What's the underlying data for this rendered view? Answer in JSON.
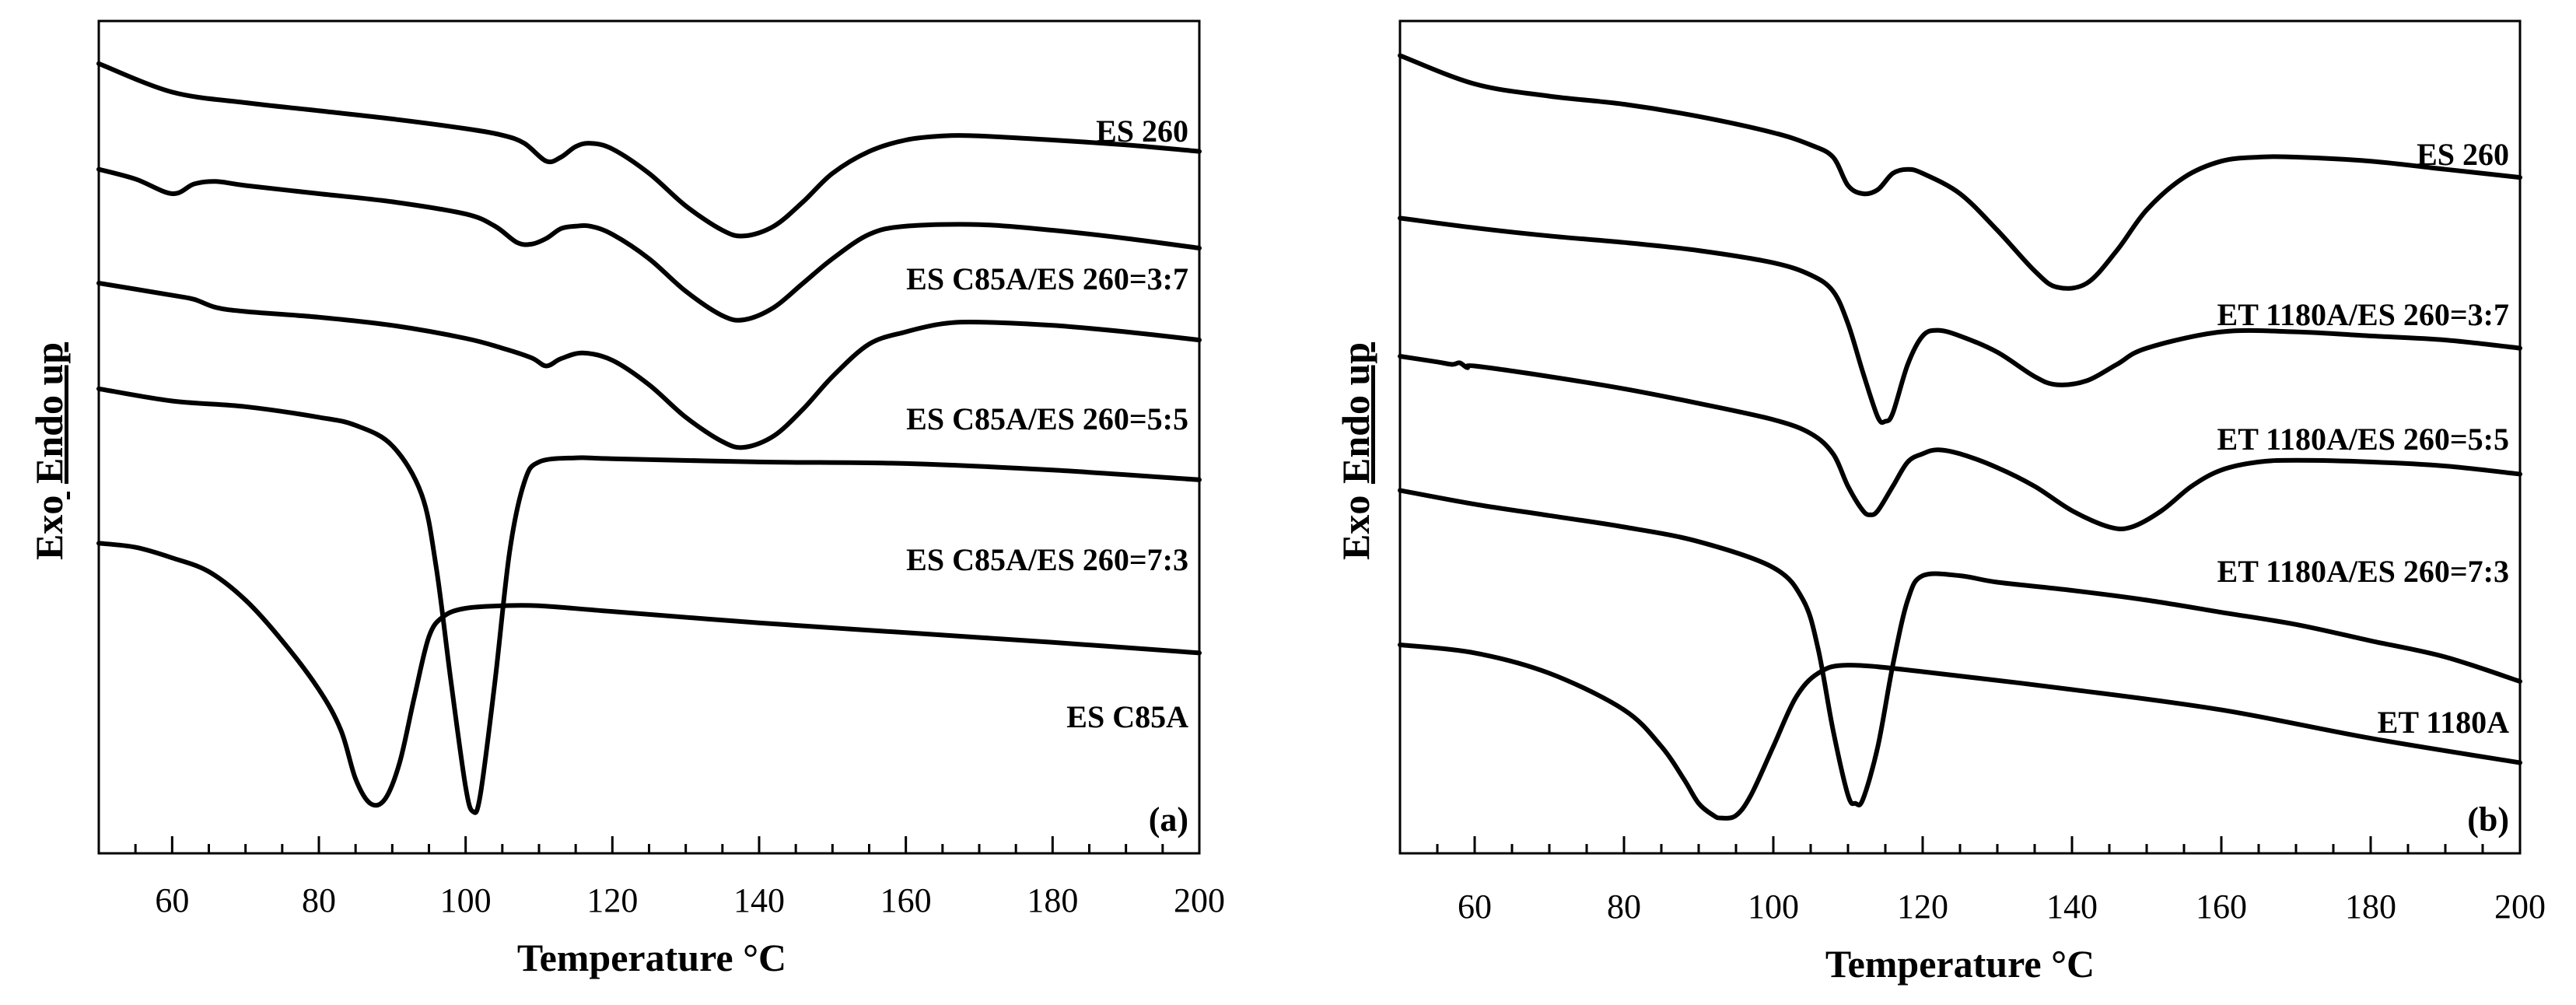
{
  "figure": {
    "panels": [
      {
        "id": "a",
        "tag": "(a)",
        "xlabel": "Temperature °C",
        "ylabel_endo": "Endo up",
        "ylabel_exo": "Exo"
      },
      {
        "id": "b",
        "tag": "(b)",
        "xlabel": "Temperature °C",
        "ylabel_endo": "Endo up",
        "ylabel_exo": "Exo"
      }
    ]
  },
  "chart_data": [
    {
      "type": "line",
      "panel": "(a)",
      "xlabel": "Temperature °C",
      "ylabel": "Exo Endo up",
      "xlim": [
        50,
        200
      ],
      "x_ticks": [
        60,
        80,
        100,
        120,
        140,
        160,
        180,
        200
      ],
      "y_axis_ticks": "none",
      "grid": false,
      "series": [
        {
          "name": "ES 260",
          "x": [
            50,
            60,
            70,
            80,
            90,
            100,
            105,
            108,
            111,
            113,
            115,
            117,
            120,
            125,
            130,
            135,
            138,
            142,
            146,
            150,
            155,
            160,
            165,
            170,
            180,
            190,
            200
          ],
          "y": [
            0.96,
            0.925,
            0.912,
            0.902,
            0.892,
            0.88,
            0.872,
            0.862,
            0.84,
            0.845,
            0.858,
            0.862,
            0.855,
            0.825,
            0.785,
            0.755,
            0.748,
            0.76,
            0.79,
            0.825,
            0.852,
            0.866,
            0.871,
            0.871,
            0.866,
            0.86,
            0.852
          ]
        },
        {
          "name": "ES C85A/ES 260=3:7",
          "x": [
            50,
            55,
            60,
            63,
            66,
            70,
            80,
            90,
            100,
            104,
            107,
            109,
            111,
            113,
            115,
            117,
            120,
            125,
            130,
            135,
            138,
            142,
            146,
            150,
            155,
            160,
            170,
            180,
            190,
            200
          ],
          "y": [
            0.83,
            0.818,
            0.8,
            0.812,
            0.815,
            0.81,
            0.8,
            0.79,
            0.775,
            0.76,
            0.74,
            0.738,
            0.745,
            0.757,
            0.76,
            0.76,
            0.75,
            0.72,
            0.68,
            0.65,
            0.645,
            0.66,
            0.69,
            0.72,
            0.75,
            0.76,
            0.762,
            0.755,
            0.745,
            0.733
          ]
        },
        {
          "name": "ES C85A/ES 260=5:5",
          "x": [
            50,
            60,
            63,
            66,
            70,
            80,
            90,
            100,
            105,
            109,
            111,
            113,
            116,
            120,
            125,
            130,
            135,
            138,
            142,
            146,
            150,
            155,
            160,
            165,
            170,
            180,
            190,
            200
          ],
          "y": [
            0.69,
            0.675,
            0.67,
            0.66,
            0.655,
            0.648,
            0.638,
            0.622,
            0.61,
            0.598,
            0.588,
            0.597,
            0.604,
            0.595,
            0.565,
            0.525,
            0.495,
            0.488,
            0.502,
            0.535,
            0.575,
            0.615,
            0.63,
            0.64,
            0.642,
            0.638,
            0.63,
            0.62
          ]
        },
        {
          "name": "ES C85A/ES 260=7:3",
          "x": [
            50,
            60,
            70,
            80,
            85,
            90,
            94,
            96,
            98,
            100,
            101,
            102,
            104,
            106,
            108,
            110,
            115,
            120,
            140,
            160,
            180,
            200
          ],
          "y": [
            0.56,
            0.545,
            0.538,
            0.525,
            0.515,
            0.49,
            0.43,
            0.34,
            0.2,
            0.07,
            0.04,
            0.06,
            0.2,
            0.36,
            0.445,
            0.47,
            0.475,
            0.474,
            0.47,
            0.468,
            0.46,
            0.448
          ]
        },
        {
          "name": "ES C85A",
          "x": [
            50,
            55,
            60,
            65,
            70,
            75,
            80,
            83,
            85,
            87,
            89,
            91,
            93,
            95,
            97,
            100,
            105,
            110,
            120,
            140,
            160,
            180,
            200
          ],
          "y": [
            0.37,
            0.365,
            0.352,
            0.335,
            0.3,
            0.25,
            0.19,
            0.14,
            0.08,
            0.05,
            0.055,
            0.1,
            0.18,
            0.255,
            0.28,
            0.29,
            0.293,
            0.293,
            0.286,
            0.272,
            0.26,
            0.248,
            0.235
          ]
        }
      ]
    },
    {
      "type": "line",
      "panel": "(b)",
      "xlabel": "Temperature °C",
      "ylabel": "Exo Endo up",
      "xlim": [
        50,
        200
      ],
      "x_ticks": [
        60,
        80,
        100,
        120,
        140,
        160,
        180,
        200
      ],
      "y_axis_ticks": "none",
      "grid": false,
      "series": [
        {
          "name": "ES 260",
          "x": [
            50,
            60,
            70,
            80,
            90,
            100,
            105,
            108,
            110,
            112,
            114,
            116,
            118,
            120,
            125,
            130,
            135,
            138,
            142,
            146,
            150,
            155,
            160,
            165,
            170,
            180,
            190,
            200
          ],
          "y": [
            0.97,
            0.935,
            0.92,
            0.91,
            0.895,
            0.875,
            0.86,
            0.845,
            0.81,
            0.8,
            0.805,
            0.825,
            0.83,
            0.825,
            0.8,
            0.755,
            0.705,
            0.685,
            0.69,
            0.73,
            0.78,
            0.82,
            0.84,
            0.845,
            0.845,
            0.84,
            0.83,
            0.82
          ]
        },
        {
          "name": "ET 1180A/ES 260=3:7",
          "x": [
            50,
            60,
            70,
            80,
            90,
            100,
            105,
            108,
            110,
            112,
            114,
            115,
            116,
            118,
            120,
            122,
            125,
            130,
            135,
            138,
            142,
            146,
            150,
            160,
            170,
            180,
            190,
            200
          ],
          "y": [
            0.77,
            0.758,
            0.748,
            0.74,
            0.73,
            0.715,
            0.7,
            0.68,
            0.64,
            0.58,
            0.525,
            0.52,
            0.53,
            0.59,
            0.625,
            0.632,
            0.625,
            0.605,
            0.575,
            0.565,
            0.57,
            0.59,
            0.61,
            0.63,
            0.63,
            0.625,
            0.62,
            0.61
          ]
        },
        {
          "name": "ET 1180A/ES 260=5:5",
          "x": [
            50,
            55,
            57,
            58,
            59,
            60,
            70,
            80,
            90,
            100,
            105,
            108,
            110,
            112,
            113,
            114,
            116,
            118,
            120,
            122,
            125,
            130,
            135,
            140,
            145,
            148,
            152,
            156,
            160,
            165,
            170,
            180,
            190,
            200
          ],
          "y": [
            0.6,
            0.593,
            0.59,
            0.592,
            0.586,
            0.588,
            0.575,
            0.56,
            0.542,
            0.522,
            0.505,
            0.48,
            0.44,
            0.41,
            0.405,
            0.41,
            0.44,
            0.47,
            0.48,
            0.485,
            0.48,
            0.463,
            0.44,
            0.41,
            0.39,
            0.39,
            0.41,
            0.44,
            0.46,
            0.47,
            0.472,
            0.47,
            0.465,
            0.455
          ]
        },
        {
          "name": "ET 1180A/ES 260=7:3",
          "x": [
            50,
            60,
            70,
            80,
            90,
            100,
            104,
            106,
            108,
            110,
            111,
            112,
            114,
            116,
            118,
            120,
            125,
            130,
            140,
            150,
            160,
            170,
            180,
            190,
            200
          ],
          "y": [
            0.435,
            0.418,
            0.404,
            0.39,
            0.372,
            0.34,
            0.3,
            0.24,
            0.14,
            0.06,
            0.05,
            0.055,
            0.12,
            0.22,
            0.3,
            0.33,
            0.33,
            0.322,
            0.312,
            0.3,
            0.285,
            0.27,
            0.25,
            0.23,
            0.2
          ]
        },
        {
          "name": "ET 1180A",
          "x": [
            50,
            60,
            70,
            80,
            85,
            88,
            90,
            92,
            93,
            95,
            97,
            100,
            103,
            106,
            110,
            120,
            140,
            160,
            180,
            200
          ],
          "y": [
            0.245,
            0.235,
            0.21,
            0.165,
            0.12,
            0.08,
            0.05,
            0.035,
            0.032,
            0.035,
            0.06,
            0.12,
            0.18,
            0.21,
            0.22,
            0.212,
            0.19,
            0.165,
            0.13,
            0.1
          ]
        }
      ]
    }
  ]
}
